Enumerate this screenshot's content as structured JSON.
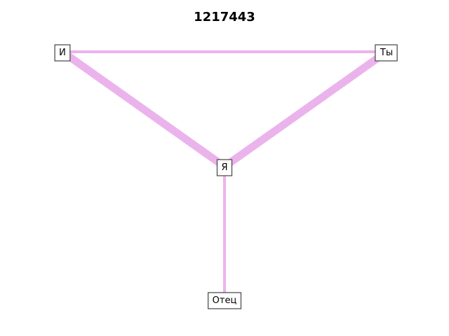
{
  "title": "1217443",
  "edge_color": "#ebb3ec",
  "nodes": [
    {
      "id": "i",
      "label": "И"
    },
    {
      "id": "ty",
      "label": "Ты"
    },
    {
      "id": "ya",
      "label": "Я"
    },
    {
      "id": "otets",
      "label": "Отец"
    }
  ],
  "edges": [
    {
      "from": "i",
      "to": "ty",
      "weight": 1
    },
    {
      "from": "i",
      "to": "ya",
      "weight": 3
    },
    {
      "from": "ty",
      "to": "ya",
      "weight": 3
    },
    {
      "from": "ya",
      "to": "otets",
      "weight": 1
    }
  ]
}
